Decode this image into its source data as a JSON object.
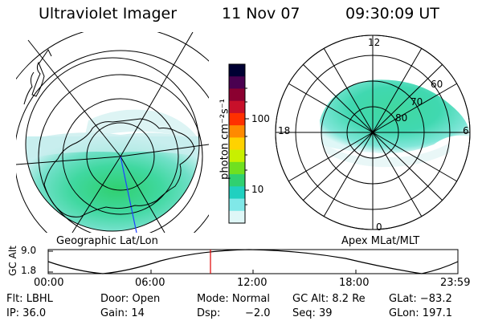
{
  "header": {
    "instrument": "Ultraviolet Imager",
    "date": "11 Nov 07",
    "time": "09:30:09 UT"
  },
  "colorbar": {
    "unit_label": "photon cm⁻²s⁻¹",
    "ticks": [
      "100",
      "10"
    ],
    "scale": "log",
    "colors": [
      "#000033",
      "#4a0050",
      "#8b0030",
      "#c8102a",
      "#ff3000",
      "#ff8a00",
      "#ffd200",
      "#c8f000",
      "#70e020",
      "#30d070",
      "#20d0c0",
      "#80e8e8",
      "#dff7f7"
    ]
  },
  "left_map": {
    "caption": "Geographic Lat/Lon",
    "projection": "polar",
    "hemisphere": "south"
  },
  "right_map": {
    "caption": "Apex MLat/MLT",
    "mlt_labels": {
      "top": "12",
      "left": "18",
      "right": "6",
      "bottom": "0"
    },
    "mlat_labels": [
      "60",
      "70",
      "80"
    ]
  },
  "timeline": {
    "ylabel": "GC Alt",
    "yticks": [
      "9.0",
      "1.8"
    ],
    "xticks": [
      "00:00",
      "06:00",
      "12:00",
      "18:00",
      "23:59"
    ],
    "marker_color": "#e00000"
  },
  "info": {
    "filter": "Flt: LBHL",
    "ip": "IP: 36.0",
    "door": "Door: Open",
    "gain": "Gain: 14",
    "mode": "Mode: Normal",
    "dsp": "Dsp:",
    "dsp_value": "−2.0",
    "gc_alt": "GC Alt: 8.2 Re",
    "seq": "Seq: 39",
    "glat": "GLat: −83.2",
    "glon": "GLon: 197.1"
  }
}
